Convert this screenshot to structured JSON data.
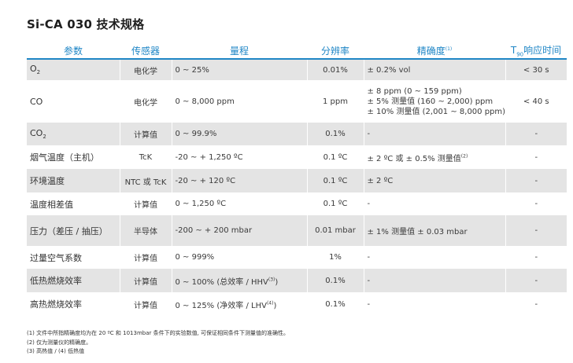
{
  "title": "Si-CA 030  技术规格",
  "headers": {
    "param": "参数",
    "sensor": "传感器",
    "range": "量程",
    "resolution": "分辨率",
    "accuracy": "精确度",
    "accuracy_note": "(1)",
    "response_prefix": "T",
    "response_sub": "90",
    "response_suffix": "响应时间"
  },
  "rows": [
    {
      "param": "O",
      "param_sub": "2",
      "sensor": "电化学",
      "range": "0 ~ 25%",
      "resolution": "0.01%",
      "accuracy": [
        "± 0.2% vol"
      ],
      "accuracy_note": "",
      "response": "< 30 s"
    },
    {
      "param": "CO",
      "param_sub": "",
      "sensor": "电化学",
      "range": "0 ~ 8,000 ppm",
      "resolution": "1 ppm",
      "accuracy": [
        "± 8 ppm (0 ~ 159 ppm)",
        "± 5% 测量值 (160 ~ 2,000) ppm",
        "± 10% 测量值 (2,001 ~ 8,000 ppm)"
      ],
      "accuracy_note": "",
      "response": "< 40 s"
    },
    {
      "param": "CO",
      "param_sub": "2",
      "sensor": "计算值",
      "range": "0 ~ 99.9%",
      "resolution": "0.1%",
      "accuracy": [
        "-"
      ],
      "accuracy_note": "",
      "response": "-"
    },
    {
      "param": "烟气温度（主机）",
      "param_sub": "",
      "sensor": "TcK",
      "range": "-20 ~ + 1,250 ºC",
      "resolution": "0.1 ºC",
      "accuracy": [
        "± 2 ºC 或 ± 0.5% 测量值"
      ],
      "accuracy_note": "(2)",
      "response": "-"
    },
    {
      "param": "环境温度",
      "param_sub": "",
      "sensor": "NTC 或 TcK",
      "range": "-20 ~ + 120 ºC",
      "resolution": "0.1 ºC",
      "accuracy": [
        "± 2 ºC"
      ],
      "accuracy_note": "",
      "response": "-"
    },
    {
      "param": "温度相差值",
      "param_sub": "",
      "sensor": "计算值",
      "range": "0 ~ 1,250 ºC",
      "resolution": "0.1 ºC",
      "accuracy": [
        "-"
      ],
      "accuracy_note": "",
      "response": "-"
    },
    {
      "param": "压力（差压 / 抽压）",
      "param_sub": "",
      "sensor": "半导体",
      "range": "-200 ~ + 200 mbar",
      "resolution": "0.01 mbar",
      "accuracy": [
        "± 1% 测量值 ± 0.03 mbar"
      ],
      "accuracy_note": "",
      "response": "-"
    },
    {
      "param": "过量空气系数",
      "param_sub": "",
      "sensor": "计算值",
      "range": "0 ~ 999%",
      "resolution": "1%",
      "accuracy": [
        "-"
      ],
      "accuracy_note": "",
      "response": "-"
    },
    {
      "param": "低热燃烧效率",
      "param_sub": "",
      "sensor": "计算值",
      "range": "0 ~ 100% (总效率 / HHV",
      "range_note": "(3)",
      "range_close": ")",
      "resolution": "0.1%",
      "accuracy": [
        "-"
      ],
      "accuracy_note": "",
      "response": "-"
    },
    {
      "param": "高热燃烧效率",
      "param_sub": "",
      "sensor": "计算值",
      "range": "0 ~ 125% (净效率 / LHV",
      "range_note": "(4)",
      "range_close": ")",
      "resolution": "0.1%",
      "accuracy": [
        "-"
      ],
      "accuracy_note": "",
      "response": "-"
    }
  ],
  "footnotes": [
    "(1) 文件中所指精确度均为在 20 ºC 和 1013mbar 条件下的实验数值, 可保证相同条件下测量值的准确性。",
    "(2) 仅为测量仪的精确度。",
    "(3) 高热值 / (4) 低热值"
  ]
}
